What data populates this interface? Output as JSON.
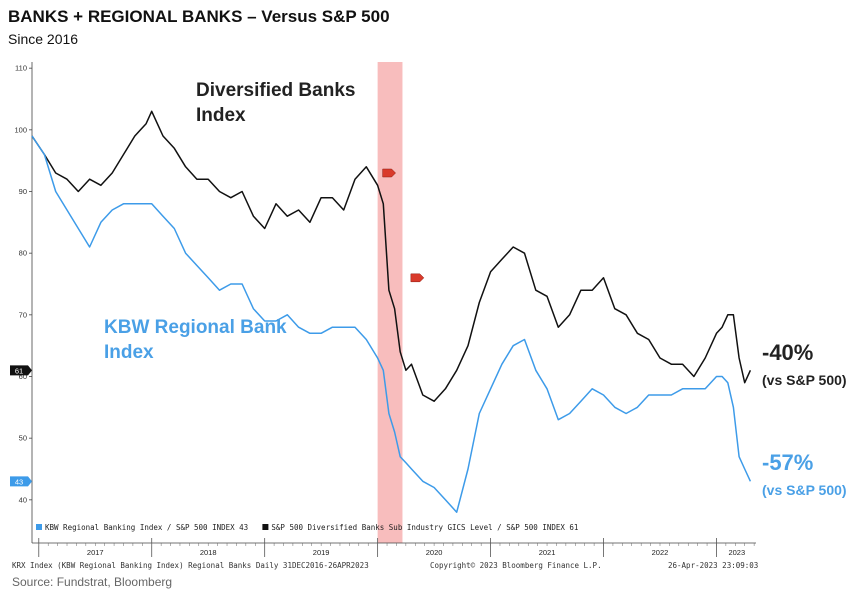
{
  "title": "BANKS + REGIONAL BANKS – Versus S&P 500",
  "subtitle": "Since 2016",
  "annotations": {
    "diversified_line1": "Diversified Banks",
    "diversified_line2": "Index",
    "kbw_line1": "KBW Regional Bank",
    "kbw_line2": "Index",
    "right_top_value": "-40%",
    "right_top_note": "(vs S&P 500)",
    "right_bottom_value": "-57%",
    "right_bottom_note": "(vs S&P 500)"
  },
  "footer": {
    "left": "KRX Index (KBW Regional Banking Index) Regional Banks  Daily 31DEC2016-26APR2023",
    "center": "Copyright© 2023 Bloomberg Finance L.P.",
    "right": "26-Apr-2023 23:09:03",
    "source": "Source: Fundstrat, Bloomberg"
  },
  "colors": {
    "regional": "#3d9be9",
    "diversified": "#111111",
    "shade": "#f7b2b2",
    "tag_red": "#d93a2b"
  },
  "chart_data": {
    "type": "line",
    "ylim": [
      33,
      111
    ],
    "yticks": [
      40,
      50,
      60,
      70,
      80,
      90,
      100,
      110
    ],
    "xlim": [
      2016.94,
      2023.35
    ],
    "year_labels": [
      "2017",
      "2018",
      "2019",
      "2020",
      "2021",
      "2022",
      "2023"
    ],
    "shaded_region": [
      2020.0,
      2020.22
    ],
    "end_tags": [
      {
        "value": 61,
        "label": "61",
        "series": "diversified"
      },
      {
        "value": 43,
        "label": "43",
        "series": "regional"
      }
    ],
    "legend": [
      {
        "label": "KBW Regional Banking Index / S&P 500 INDEX 43",
        "series": "regional"
      },
      {
        "label": "S&P 500 Diversified Banks Sub Industry GICS Level / S&P 500 INDEX 61",
        "series": "diversified"
      }
    ],
    "series": [
      {
        "key": "diversified",
        "x": [
          2016.94,
          2017.05,
          2017.15,
          2017.25,
          2017.35,
          2017.45,
          2017.55,
          2017.65,
          2017.75,
          2017.85,
          2017.95,
          2018.0,
          2018.1,
          2018.2,
          2018.3,
          2018.4,
          2018.5,
          2018.6,
          2018.7,
          2018.8,
          2018.9,
          2019.0,
          2019.1,
          2019.2,
          2019.3,
          2019.4,
          2019.5,
          2019.6,
          2019.7,
          2019.8,
          2019.9,
          2020.0,
          2020.05,
          2020.1,
          2020.15,
          2020.2,
          2020.25,
          2020.3,
          2020.4,
          2020.5,
          2020.6,
          2020.7,
          2020.8,
          2020.9,
          2021.0,
          2021.1,
          2021.2,
          2021.3,
          2021.4,
          2021.5,
          2021.6,
          2021.7,
          2021.8,
          2021.9,
          2022.0,
          2022.1,
          2022.2,
          2022.3,
          2022.4,
          2022.5,
          2022.6,
          2022.7,
          2022.8,
          2022.9,
          2023.0,
          2023.05,
          2023.1,
          2023.15,
          2023.2,
          2023.25,
          2023.3
        ],
        "y": [
          99,
          96,
          93,
          92,
          90,
          92,
          91,
          93,
          96,
          99,
          101,
          103,
          99,
          97,
          94,
          92,
          92,
          90,
          89,
          90,
          86,
          84,
          88,
          86,
          87,
          85,
          89,
          89,
          87,
          92,
          94,
          91,
          88,
          74,
          71,
          64,
          61,
          62,
          57,
          56,
          58,
          61,
          65,
          72,
          77,
          79,
          81,
          80,
          74,
          73,
          68,
          70,
          74,
          74,
          76,
          71,
          70,
          67,
          66,
          63,
          62,
          62,
          60,
          63,
          67,
          68,
          70,
          70,
          63,
          59,
          61
        ]
      },
      {
        "key": "regional",
        "x": [
          2016.94,
          2017.05,
          2017.15,
          2017.25,
          2017.35,
          2017.45,
          2017.55,
          2017.65,
          2017.75,
          2017.85,
          2017.95,
          2018.0,
          2018.1,
          2018.2,
          2018.3,
          2018.4,
          2018.5,
          2018.6,
          2018.7,
          2018.8,
          2018.9,
          2019.0,
          2019.1,
          2019.2,
          2019.3,
          2019.4,
          2019.5,
          2019.6,
          2019.7,
          2019.8,
          2019.9,
          2020.0,
          2020.05,
          2020.1,
          2020.15,
          2020.2,
          2020.25,
          2020.3,
          2020.4,
          2020.5,
          2020.6,
          2020.7,
          2020.8,
          2020.9,
          2021.0,
          2021.1,
          2021.2,
          2021.3,
          2021.4,
          2021.5,
          2021.6,
          2021.7,
          2021.8,
          2021.9,
          2022.0,
          2022.1,
          2022.2,
          2022.3,
          2022.4,
          2022.5,
          2022.6,
          2022.7,
          2022.8,
          2022.9,
          2023.0,
          2023.05,
          2023.1,
          2023.15,
          2023.2,
          2023.25,
          2023.3
        ],
        "y": [
          99,
          96,
          90,
          87,
          84,
          81,
          85,
          87,
          88,
          88,
          88,
          88,
          86,
          84,
          80,
          78,
          76,
          74,
          75,
          75,
          71,
          69,
          69,
          70,
          68,
          67,
          67,
          68,
          68,
          68,
          66,
          63,
          61,
          54,
          51,
          47,
          46,
          45,
          43,
          42,
          40,
          38,
          45,
          54,
          58,
          62,
          65,
          66,
          61,
          58,
          53,
          54,
          56,
          58,
          57,
          55,
          54,
          55,
          57,
          57,
          57,
          58,
          58,
          58,
          60,
          60,
          59,
          55,
          47,
          45,
          43
        ]
      }
    ]
  }
}
